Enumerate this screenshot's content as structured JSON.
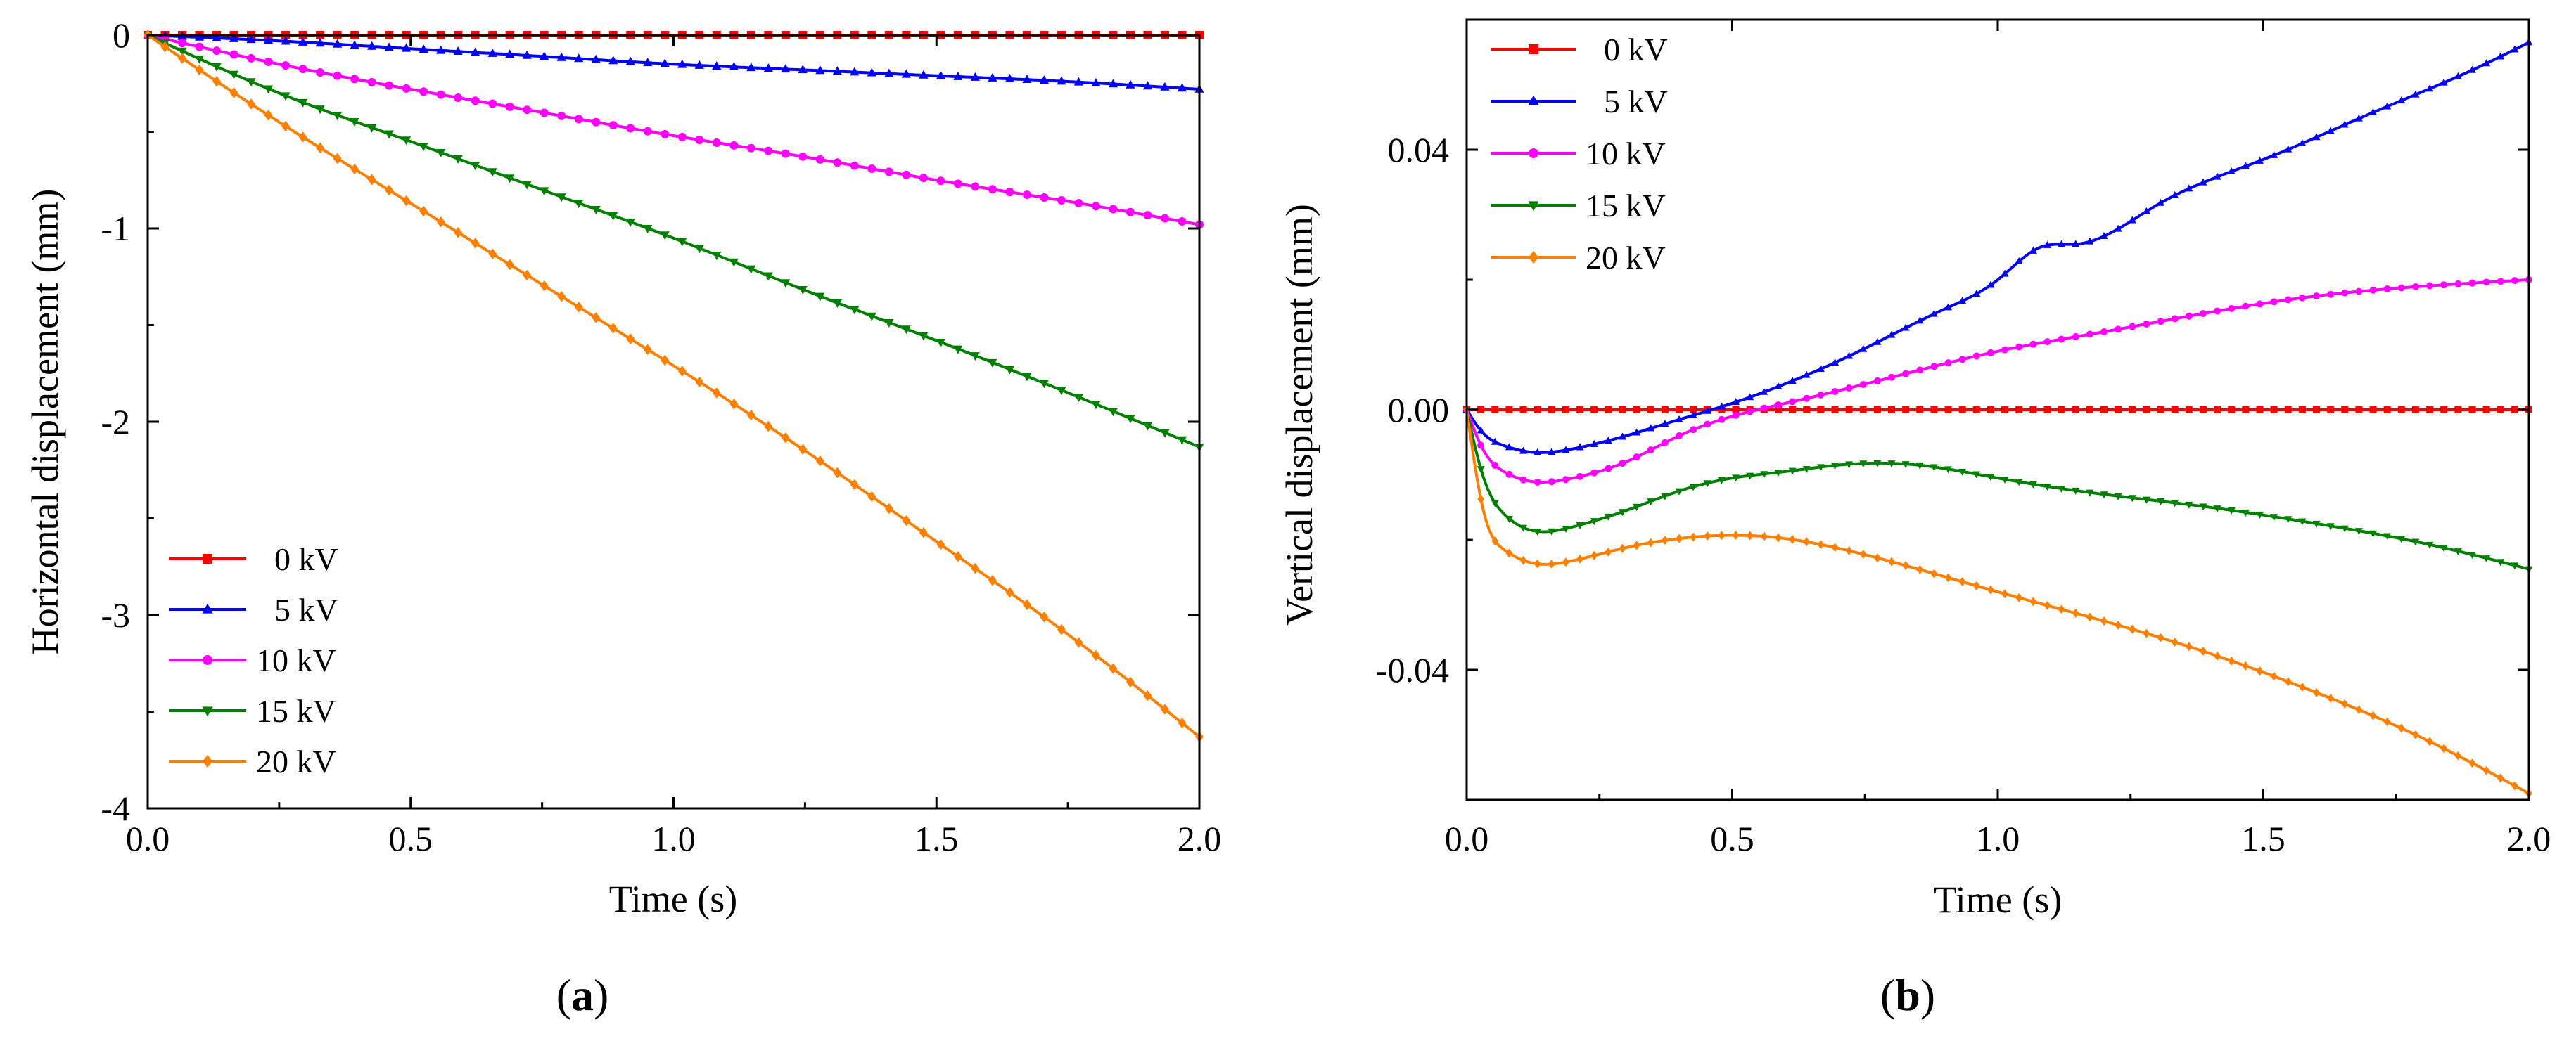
{
  "chart_data": [
    {
      "type": "line",
      "panel_label": {
        "open": "(",
        "letter": "a",
        "close": ")"
      },
      "xlabel": "Time (s)",
      "ylabel": "Horizontal displacement (mm)",
      "xlim": [
        0,
        2.0
      ],
      "ylim": [
        -4,
        0
      ],
      "xticks": [
        "0.0",
        "0.5",
        "1.0",
        "1.5",
        "2.0"
      ],
      "xtick_values": [
        0,
        0.5,
        1.0,
        1.5,
        2.0
      ],
      "yticks": [
        "0",
        "-1",
        "-2",
        "-3",
        "-4"
      ],
      "ytick_values": [
        0,
        -1,
        -2,
        -3,
        -4
      ],
      "grid": false,
      "legend_position": "lower-left",
      "x": [
        0,
        0.25,
        0.5,
        0.75,
        1.0,
        1.25,
        1.5,
        1.75,
        2.0
      ],
      "series": [
        {
          "name": "0 kV",
          "color": "#ff0000",
          "marker": "square",
          "values": [
            0,
            0,
            0,
            0,
            0,
            0,
            0,
            0,
            0
          ]
        },
        {
          "name": "5 kV",
          "color": "#0000ff",
          "marker": "triangle-up",
          "values": [
            0,
            -0.03,
            -0.07,
            -0.11,
            -0.15,
            -0.18,
            -0.21,
            -0.24,
            -0.28
          ]
        },
        {
          "name": "10 kV",
          "color": "#ff00ff",
          "marker": "circle",
          "values": [
            0,
            -0.15,
            -0.28,
            -0.4,
            -0.52,
            -0.63,
            -0.75,
            -0.86,
            -0.98
          ]
        },
        {
          "name": "15 kV",
          "color": "#008000",
          "marker": "triangle-down",
          "values": [
            0,
            -0.3,
            -0.55,
            -0.8,
            -1.05,
            -1.32,
            -1.58,
            -1.85,
            -2.13
          ]
        },
        {
          "name": "20 kV",
          "color": "#ff8000",
          "marker": "diamond",
          "values": [
            0,
            -0.45,
            -0.87,
            -1.29,
            -1.71,
            -2.15,
            -2.62,
            -3.1,
            -3.63
          ]
        }
      ]
    },
    {
      "type": "line",
      "panel_label": {
        "open": "(",
        "letter": "b",
        "close": ")"
      },
      "xlabel": "Time (s)",
      "ylabel": "Vertical displacement (mm)",
      "xlim": [
        0,
        2.0
      ],
      "ylim": [
        -0.06,
        0.06
      ],
      "xticks": [
        "0.0",
        "0.5",
        "1.0",
        "1.5",
        "2.0"
      ],
      "xtick_values": [
        0,
        0.5,
        1.0,
        1.5,
        2.0
      ],
      "yticks": [
        "0.04",
        "0.00",
        "-0.04"
      ],
      "ytick_values": [
        0.04,
        0.0,
        -0.04
      ],
      "grid": false,
      "legend_position": "top-left",
      "series": [
        {
          "name": "0 kV",
          "color": "#ff0000",
          "marker": "square",
          "x": [
            0,
            2.0
          ],
          "values": [
            0,
            0
          ]
        },
        {
          "name": "5 kV",
          "color": "#0000ff",
          "marker": "triangle-up",
          "x": [
            0,
            0.03,
            0.07,
            0.12,
            0.2,
            0.3,
            0.4,
            0.5,
            0.6,
            0.7,
            0.8,
            0.9,
            1.0,
            1.08,
            1.15,
            1.3,
            1.5,
            1.7,
            1.9,
            2.0
          ],
          "values": [
            0,
            -0.0035,
            -0.0055,
            -0.0065,
            -0.006,
            -0.004,
            -0.0015,
            0.001,
            0.004,
            0.0075,
            0.0115,
            0.0155,
            0.02,
            0.025,
            0.0255,
            0.0315,
            0.0385,
            0.0455,
            0.0525,
            0.0565
          ]
        },
        {
          "name": "10 kV",
          "color": "#ff00ff",
          "marker": "circle",
          "x": [
            0,
            0.03,
            0.07,
            0.12,
            0.2,
            0.3,
            0.4,
            0.5,
            0.6,
            0.8,
            1.0,
            1.2,
            1.4,
            1.6,
            1.8,
            2.0
          ],
          "values": [
            0,
            -0.006,
            -0.0095,
            -0.011,
            -0.0105,
            -0.008,
            -0.004,
            -0.001,
            0.001,
            0.005,
            0.009,
            0.012,
            0.015,
            0.0175,
            0.019,
            0.02
          ]
        },
        {
          "name": "15 kV",
          "color": "#008000",
          "marker": "triangle-down",
          "x": [
            0,
            0.03,
            0.07,
            0.12,
            0.2,
            0.3,
            0.4,
            0.5,
            0.6,
            0.7,
            0.85,
            1.0,
            1.2,
            1.4,
            1.6,
            1.8,
            2.0
          ],
          "values": [
            0,
            -0.01,
            -0.016,
            -0.0185,
            -0.018,
            -0.0155,
            -0.0125,
            -0.0105,
            -0.0095,
            -0.0085,
            -0.0085,
            -0.0105,
            -0.013,
            -0.015,
            -0.0175,
            -0.0205,
            -0.0245
          ]
        },
        {
          "name": "20 kV",
          "color": "#ff8000",
          "marker": "diamond",
          "x": [
            0,
            0.03,
            0.07,
            0.12,
            0.2,
            0.3,
            0.4,
            0.5,
            0.6,
            0.7,
            0.85,
            1.0,
            1.2,
            1.4,
            1.6,
            1.8,
            2.0
          ],
          "values": [
            0,
            -0.015,
            -0.0215,
            -0.0235,
            -0.0232,
            -0.0212,
            -0.0198,
            -0.0193,
            -0.0198,
            -0.0213,
            -0.0245,
            -0.028,
            -0.0325,
            -0.0375,
            -0.0435,
            -0.0505,
            -0.059
          ]
        }
      ]
    }
  ]
}
